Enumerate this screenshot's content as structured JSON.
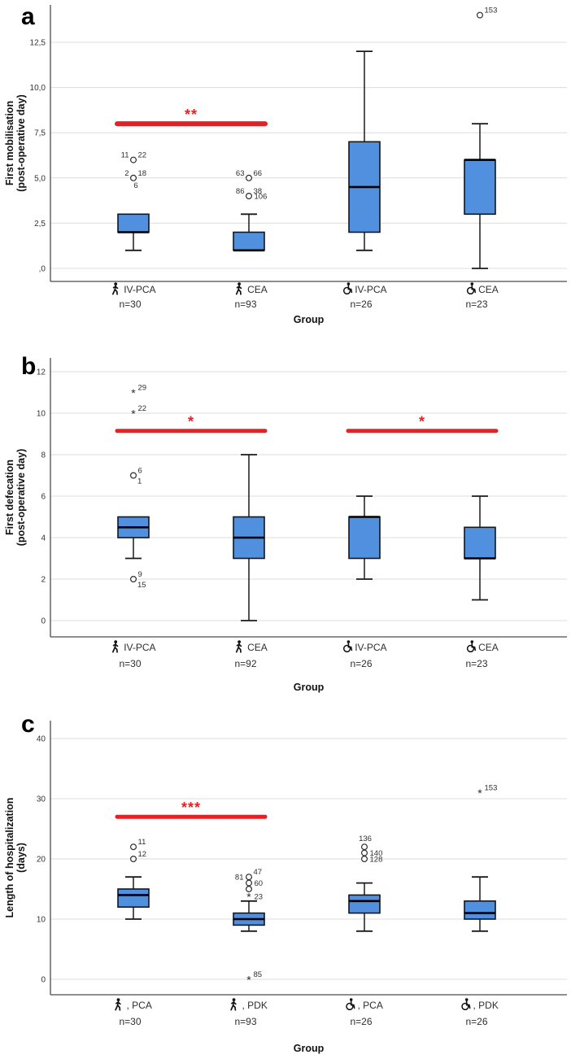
{
  "figure_colors": {
    "box_fill": "#5090df",
    "box_stroke": "#101720",
    "median": "#000000",
    "whisker": "#1a1a1a",
    "grid": "#dcdcdc",
    "axis": "#4a4a4a",
    "tick_text": "#333333",
    "label_text": "#2e2e2e",
    "sig_red": "#e32227",
    "outlier": "#2b2b2b"
  },
  "chart_data": [
    {
      "type": "box",
      "panel_label": "a",
      "ylabel_lines": [
        "First mobilisation",
        "(post-operative day)"
      ],
      "xlabel": "Group",
      "ylim": [
        -0.7,
        14.5
      ],
      "grid": true,
      "yticks": [
        {
          "v": 0,
          "label": ",0"
        },
        {
          "v": 2.5,
          "label": "2,5"
        },
        {
          "v": 5,
          "label": "5,0"
        },
        {
          "v": 7.5,
          "label": "7,5"
        },
        {
          "v": 10,
          "label": "10,0"
        },
        {
          "v": 12.5,
          "label": "12,5"
        }
      ],
      "groups": [
        {
          "icon": "walking-person",
          "label": "IV-PCA",
          "n": "n=30",
          "q1": 2,
          "median": 2,
          "q3": 3,
          "whisker_low": 1,
          "whisker_high": 3,
          "outliers": [
            {
              "v": 6,
              "marker": "circle",
              "labels": [
                {
                  "t": "11",
                  "pos": "tl"
                },
                {
                  "t": "22",
                  "pos": "tr"
                }
              ]
            },
            {
              "v": 5,
              "marker": "circle",
              "labels": [
                {
                  "t": "2",
                  "pos": "tl"
                },
                {
                  "t": "18",
                  "pos": "tr"
                },
                {
                  "t": "6",
                  "pos": "b"
                }
              ]
            }
          ]
        },
        {
          "icon": "walking-person",
          "label": "CEA",
          "n": "n=93",
          "q1": 1,
          "median": 1,
          "q3": 2,
          "whisker_low": 1,
          "whisker_high": 3,
          "outliers": [
            {
              "v": 5,
              "marker": "circle",
              "labels": [
                {
                  "t": "63",
                  "pos": "tl"
                },
                {
                  "t": "66",
                  "pos": "tr"
                }
              ]
            },
            {
              "v": 4,
              "marker": "circle",
              "labels": [
                {
                  "t": "86",
                  "pos": "tl"
                },
                {
                  "t": "38",
                  "pos": "tr"
                },
                {
                  "t": "106",
                  "pos": "r"
                }
              ]
            }
          ]
        },
        {
          "icon": "wheelchair",
          "label": "IV-PCA",
          "n": "n=26",
          "q1": 2,
          "median": 4.5,
          "q3": 7,
          "whisker_low": 1,
          "whisker_high": 12,
          "outliers": []
        },
        {
          "icon": "wheelchair",
          "label": "CEA",
          "n": "n=23",
          "q1": 3,
          "median": 6,
          "q3": 6,
          "whisker_low": 0,
          "whisker_high": 8,
          "outliers": [
            {
              "v": 14,
              "marker": "circle",
              "labels": [
                {
                  "t": "153",
                  "pos": "tr"
                }
              ]
            }
          ]
        }
      ],
      "sig_bars": [
        {
          "from": 0,
          "to": 1,
          "v": 8,
          "stars": "**"
        }
      ]
    },
    {
      "type": "box",
      "panel_label": "b",
      "ylabel_lines": [
        "First defecation",
        "(post-operative day)"
      ],
      "xlabel": "Group",
      "ylim": [
        -0.6,
        12.5
      ],
      "grid": true,
      "yticks": [
        {
          "v": 0,
          "label": "0"
        },
        {
          "v": 2,
          "label": "2"
        },
        {
          "v": 4,
          "label": "4"
        },
        {
          "v": 6,
          "label": "6"
        },
        {
          "v": 8,
          "label": "8"
        },
        {
          "v": 10,
          "label": "10"
        },
        {
          "v": 12,
          "label": "12"
        }
      ],
      "groups": [
        {
          "icon": "walking-person",
          "label": "IV-PCA",
          "n": "n=30",
          "q1": 4,
          "median": 4.5,
          "q3": 5,
          "whisker_low": 3,
          "whisker_high": 5,
          "outliers": [
            {
              "v": 11,
              "marker": "star",
              "labels": [
                {
                  "t": "29",
                  "pos": "tr"
                }
              ]
            },
            {
              "v": 10,
              "marker": "star",
              "labels": [
                {
                  "t": "22",
                  "pos": "tr"
                }
              ]
            },
            {
              "v": 7,
              "marker": "circle",
              "labels": [
                {
                  "t": "6",
                  "pos": "tr"
                },
                {
                  "t": "1",
                  "pos": "br"
                }
              ]
            },
            {
              "v": 2,
              "marker": "circle",
              "labels": [
                {
                  "t": "9",
                  "pos": "tr"
                },
                {
                  "t": "15",
                  "pos": "br"
                }
              ]
            }
          ]
        },
        {
          "icon": "walking-person",
          "label": "CEA",
          "n": "n=92",
          "q1": 3,
          "median": 4,
          "q3": 5,
          "whisker_low": 0,
          "whisker_high": 8,
          "outliers": []
        },
        {
          "icon": "wheelchair",
          "label": "IV-PCA",
          "n": "n=26",
          "q1": 3,
          "median": 5,
          "q3": 5,
          "whisker_low": 2,
          "whisker_high": 6,
          "outliers": []
        },
        {
          "icon": "wheelchair",
          "label": "CEA",
          "n": "n=23",
          "q1": 3,
          "median": 3,
          "q3": 4.5,
          "whisker_low": 1,
          "whisker_high": 6,
          "outliers": []
        }
      ],
      "sig_bars": [
        {
          "from": 0,
          "to": 1,
          "v": 9.15,
          "stars": "*"
        },
        {
          "from": 2,
          "to": 3,
          "v": 9.15,
          "stars": "*"
        }
      ]
    },
    {
      "type": "box",
      "panel_label": "c",
      "ylabel_lines": [
        "Length of hospitalization",
        "(days)"
      ],
      "xlabel": "Group",
      "ylim": [
        -2,
        43
      ],
      "grid": true,
      "yticks": [
        {
          "v": 0,
          "label": "0"
        },
        {
          "v": 10,
          "label": "10"
        },
        {
          "v": 20,
          "label": "20"
        },
        {
          "v": 30,
          "label": "30"
        },
        {
          "v": 40,
          "label": "40"
        }
      ],
      "groups": [
        {
          "icon": "walking-person",
          "label": ", PCA",
          "n": "n=30",
          "q1": 12,
          "median": 14,
          "q3": 15,
          "whisker_low": 10,
          "whisker_high": 17,
          "outliers": [
            {
              "v": 22,
              "marker": "circle",
              "labels": [
                {
                  "t": "11",
                  "pos": "tr"
                }
              ]
            },
            {
              "v": 20,
              "marker": "circle",
              "labels": [
                {
                  "t": "12",
                  "pos": "tr"
                }
              ]
            }
          ]
        },
        {
          "icon": "walking-person",
          "label": ", PDK",
          "n": "n=93",
          "q1": 9,
          "median": 10,
          "q3": 11,
          "whisker_low": 8,
          "whisker_high": 13,
          "outliers": [
            {
              "v": 17,
              "marker": "circle",
              "labels": [
                {
                  "t": "81",
                  "pos": "l"
                },
                {
                  "t": "47",
                  "pos": "tr"
                }
              ]
            },
            {
              "v": 16,
              "marker": "circle",
              "labels": [
                {
                  "t": "60",
                  "pos": "r"
                }
              ]
            },
            {
              "v": 15,
              "marker": "circle",
              "labels": []
            },
            {
              "v": 13.8,
              "marker": "star",
              "labels": [
                {
                  "t": "23",
                  "pos": "r"
                }
              ]
            },
            {
              "v": 0,
              "marker": "star",
              "labels": [
                {
                  "t": "85",
                  "pos": "tr"
                }
              ]
            }
          ]
        },
        {
          "icon": "wheelchair",
          "label": ", PCA",
          "n": "n=26",
          "q1": 11,
          "median": 13,
          "q3": 14,
          "whisker_low": 8,
          "whisker_high": 16,
          "outliers": [
            {
              "v": 22,
              "marker": "circle",
              "labels": [
                {
                  "t": "136",
                  "pos": "t"
                }
              ]
            },
            {
              "v": 21,
              "marker": "circle",
              "labels": [
                {
                  "t": "140",
                  "pos": "r"
                }
              ]
            },
            {
              "v": 20,
              "marker": "circle",
              "labels": [
                {
                  "t": "128",
                  "pos": "r"
                }
              ]
            }
          ]
        },
        {
          "icon": "wheelchair",
          "label": ", PDK",
          "n": "n=26",
          "q1": 10,
          "median": 11,
          "q3": 13,
          "whisker_low": 8,
          "whisker_high": 17,
          "outliers": [
            {
              "v": 31,
              "marker": "star",
              "labels": [
                {
                  "t": "153",
                  "pos": "tr"
                }
              ]
            }
          ]
        }
      ],
      "sig_bars": [
        {
          "from": 0,
          "to": 1,
          "v": 27,
          "stars": "***"
        }
      ]
    }
  ]
}
